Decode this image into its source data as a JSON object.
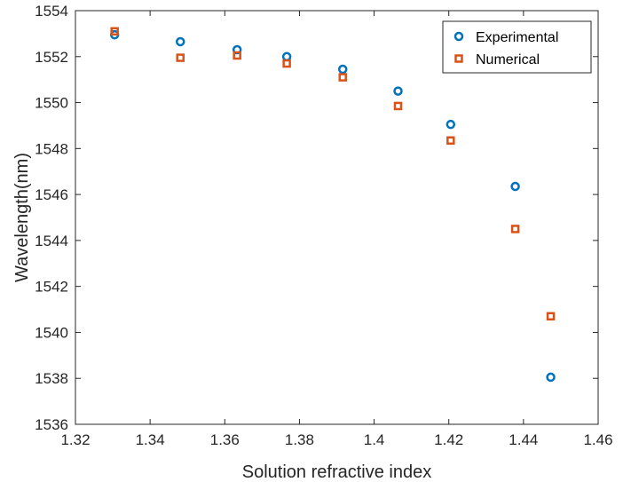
{
  "chart_data": {
    "type": "scatter",
    "title": "",
    "xlabel": "Solution refractive index",
    "ylabel": "Wavelength(nm)",
    "xlim": [
      1.32,
      1.46
    ],
    "ylim": [
      1536,
      1554
    ],
    "xticks": [
      "1.32",
      "1.34",
      "1.36",
      "1.38",
      "1.4",
      "1.42",
      "1.44",
      "1.46"
    ],
    "yticks": [
      "1536",
      "1538",
      "1540",
      "1542",
      "1544",
      "1546",
      "1548",
      "1550",
      "1552",
      "1554"
    ],
    "grid": false,
    "legend_position": "top-right",
    "series": [
      {
        "name": "Experimental",
        "marker": "circle",
        "color": "#0072BD",
        "x": [
          1.3305,
          1.3481,
          1.3633,
          1.3766,
          1.3916,
          1.4064,
          1.4205,
          1.4378,
          1.4473
        ],
        "y": [
          1552.95,
          1552.65,
          1552.3,
          1552.0,
          1551.45,
          1550.5,
          1549.05,
          1546.35,
          1538.05
        ]
      },
      {
        "name": "Numerical",
        "marker": "square",
        "color": "#D95319",
        "x": [
          1.3305,
          1.3481,
          1.3633,
          1.3766,
          1.3916,
          1.4064,
          1.4205,
          1.4378,
          1.4473
        ],
        "y": [
          1553.1,
          1551.95,
          1552.05,
          1551.7,
          1551.1,
          1549.85,
          1548.35,
          1544.5,
          1540.7
        ]
      }
    ]
  }
}
